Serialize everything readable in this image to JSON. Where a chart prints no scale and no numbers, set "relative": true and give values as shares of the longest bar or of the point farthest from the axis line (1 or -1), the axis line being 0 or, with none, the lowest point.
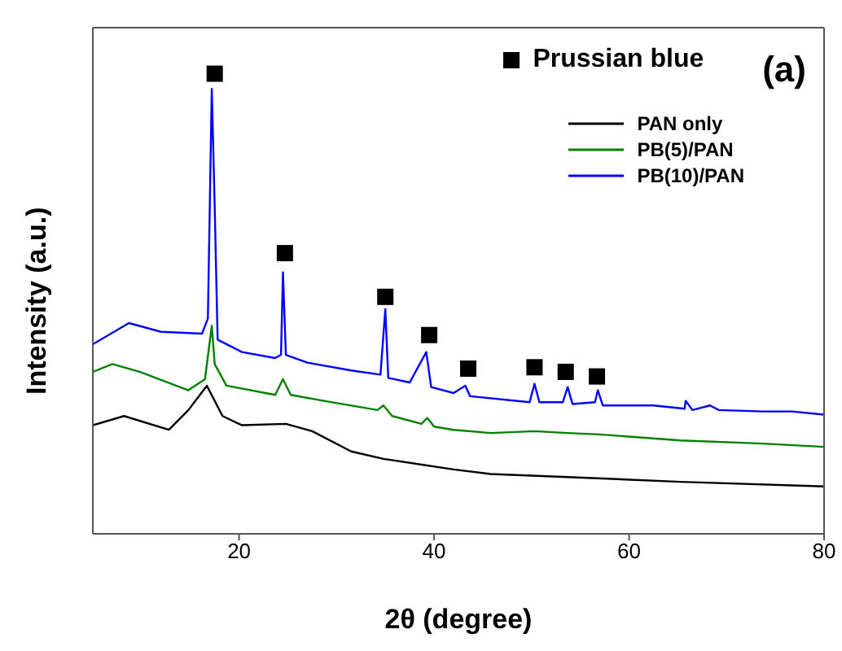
{
  "chart_data": {
    "type": "line",
    "relative": true,
    "xlabel": "2θ (degree)",
    "ylabel": "Intensity (a.u.)",
    "annotations": [
      "(a)"
    ],
    "xlim": [
      5,
      80
    ],
    "xticks": [
      20,
      40,
      60,
      80
    ],
    "legend": "top right",
    "line_style": "solid",
    "marker": "none",
    "series": [
      {
        "name": "Prussian blue",
        "type": "scatter",
        "marker": "square",
        "color": "#000000",
        "x": [
          17.5,
          24.7,
          35.0,
          39.5,
          43.5,
          50.3,
          53.5,
          56.7
        ],
        "values": [
          1.0,
          0.61,
          0.515,
          0.432,
          0.359,
          0.362,
          0.352,
          0.342
        ]
      },
      {
        "name": "PAN only",
        "color": "#000000",
        "x": [
          5,
          8.2,
          12.8,
          14.8,
          16.7,
          18.3,
          20.3,
          24.8,
          27.5,
          31.5,
          34.8,
          42.0,
          45.8,
          54.2,
          65.3,
          80
        ],
        "values": [
          0.236,
          0.256,
          0.226,
          0.269,
          0.322,
          0.256,
          0.236,
          0.239,
          0.223,
          0.179,
          0.163,
          0.14,
          0.13,
          0.123,
          0.113,
          0.103
        ]
      },
      {
        "name": "PB(5)/PAN",
        "color": "#008000",
        "x": [
          5,
          7.0,
          9.8,
          14.8,
          16.5,
          17.2,
          17.5,
          18.7,
          23.7,
          24.5,
          25.3,
          28.7,
          34.2,
          34.8,
          35.7,
          38.7,
          39.3,
          40.0,
          42.0,
          45.8,
          50.3,
          53.7,
          57.0,
          65.3,
          73.7,
          80
        ],
        "values": [
          0.352,
          0.369,
          0.352,
          0.312,
          0.336,
          0.452,
          0.369,
          0.322,
          0.302,
          0.336,
          0.302,
          0.289,
          0.269,
          0.279,
          0.256,
          0.239,
          0.252,
          0.233,
          0.226,
          0.219,
          0.223,
          0.219,
          0.216,
          0.203,
          0.196,
          0.189
        ]
      },
      {
        "name": "PB(10)/PAN",
        "color": "#0000ff",
        "x": [
          5,
          8.7,
          12.0,
          16.2,
          16.8,
          17.2,
          17.5,
          17.8,
          20.3,
          23.7,
          24.3,
          24.5,
          24.8,
          27.0,
          31.5,
          34.5,
          35.0,
          35.3,
          37.5,
          39.2,
          39.7,
          42.0,
          43.2,
          43.7,
          49.8,
          50.3,
          50.8,
          53.2,
          53.7,
          54.2,
          56.5,
          56.8,
          57.3,
          62.5,
          65.7,
          65.8,
          66.5,
          68.3,
          69.2,
          73.7,
          76.7,
          80
        ],
        "values": [
          0.412,
          0.458,
          0.439,
          0.435,
          0.468,
          0.967,
          0.711,
          0.422,
          0.395,
          0.382,
          0.389,
          0.568,
          0.389,
          0.372,
          0.355,
          0.346,
          0.488,
          0.339,
          0.329,
          0.395,
          0.319,
          0.306,
          0.322,
          0.299,
          0.286,
          0.326,
          0.286,
          0.286,
          0.319,
          0.282,
          0.286,
          0.312,
          0.279,
          0.279,
          0.272,
          0.289,
          0.269,
          0.279,
          0.269,
          0.266,
          0.266,
          0.259
        ]
      }
    ]
  }
}
